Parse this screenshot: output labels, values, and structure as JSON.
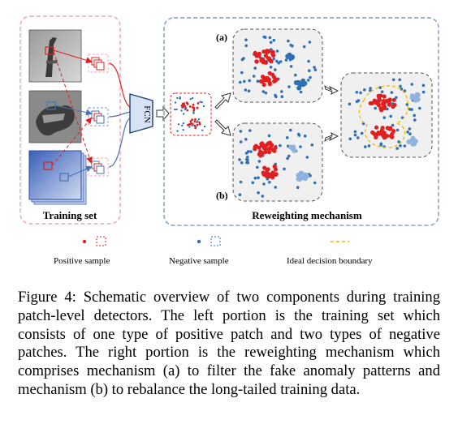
{
  "training_panel": {
    "title": "Training set"
  },
  "network": {
    "label": "FCN"
  },
  "reweighting_panel": {
    "title": "Reweighting mechanism",
    "mechanism_a_label": "(a)",
    "mechanism_b_label": "(b)"
  },
  "legend": {
    "positive": "Positive sample",
    "negative": "Negative sample",
    "boundary": "Ideal decision boundary"
  },
  "colors": {
    "positive": "#e02020",
    "negative": "#2f6fb5",
    "boundary": "#f0b800",
    "panel_border_pink": "#f4a6b4",
    "panel_border_blue": "#7f9fc6"
  },
  "caption": "Figure 4: Schematic overview of two components during training patch-level detectors. The left portion is the training set which consists of one type of positive patch and two types of negative patches. The right portion is the reweighting mechanism which comprises mechanism (a) to filter the fake anomaly patterns and mechanism (b) to rebalance the long-tailed training data."
}
